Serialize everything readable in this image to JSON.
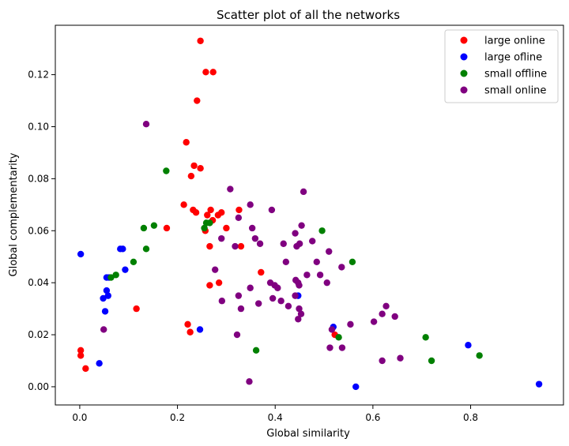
{
  "chart_data": {
    "type": "scatter",
    "title": "Scatter plot of all the networks",
    "xlabel": "Global similarity",
    "ylabel": "Global complementarity",
    "xlim": [
      -0.05,
      0.99
    ],
    "ylim": [
      -0.007,
      0.139
    ],
    "xticks": [
      0.0,
      0.2,
      0.4,
      0.6,
      0.8
    ],
    "xtick_labels": [
      "0.0",
      "0.2",
      "0.4",
      "0.6",
      "0.8"
    ],
    "yticks": [
      0.0,
      0.02,
      0.04,
      0.06,
      0.08,
      0.1,
      0.12
    ],
    "ytick_labels": [
      "0.00",
      "0.02",
      "0.04",
      "0.06",
      "0.08",
      "0.10",
      "0.12"
    ],
    "grid": false,
    "legend_position": "top-right",
    "series": [
      {
        "name": "large online",
        "color": "#ff0000",
        "points": [
          [
            0.247,
            0.133
          ],
          [
            0.258,
            0.121
          ],
          [
            0.273,
            0.121
          ],
          [
            0.24,
            0.11
          ],
          [
            0.218,
            0.094
          ],
          [
            0.234,
            0.085
          ],
          [
            0.247,
            0.084
          ],
          [
            0.228,
            0.081
          ],
          [
            0.213,
            0.07
          ],
          [
            0.232,
            0.068
          ],
          [
            0.238,
            0.067
          ],
          [
            0.261,
            0.066
          ],
          [
            0.268,
            0.068
          ],
          [
            0.283,
            0.066
          ],
          [
            0.29,
            0.067
          ],
          [
            0.272,
            0.064
          ],
          [
            0.326,
            0.068
          ],
          [
            0.178,
            0.061
          ],
          [
            0.257,
            0.06
          ],
          [
            0.3,
            0.061
          ],
          [
            0.266,
            0.054
          ],
          [
            0.33,
            0.054
          ],
          [
            0.371,
            0.044
          ],
          [
            0.285,
            0.04
          ],
          [
            0.266,
            0.039
          ],
          [
            0.116,
            0.03
          ],
          [
            0.221,
            0.024
          ],
          [
            0.226,
            0.021
          ],
          [
            0.522,
            0.02
          ],
          [
            0.002,
            0.014
          ],
          [
            0.002,
            0.012
          ],
          [
            0.012,
            0.007
          ]
        ]
      },
      {
        "name": "large ofline",
        "color": "#0000ff",
        "points": [
          [
            0.002,
            0.051
          ],
          [
            0.083,
            0.053
          ],
          [
            0.088,
            0.053
          ],
          [
            0.093,
            0.045
          ],
          [
            0.055,
            0.042
          ],
          [
            0.06,
            0.042
          ],
          [
            0.055,
            0.037
          ],
          [
            0.058,
            0.035
          ],
          [
            0.048,
            0.034
          ],
          [
            0.052,
            0.029
          ],
          [
            0.04,
            0.009
          ],
          [
            0.246,
            0.022
          ],
          [
            0.447,
            0.035
          ],
          [
            0.519,
            0.023
          ],
          [
            0.565,
            0.0
          ],
          [
            0.795,
            0.016
          ],
          [
            0.94,
            0.001
          ]
        ]
      },
      {
        "name": "small offline",
        "color": "#008000",
        "points": [
          [
            0.177,
            0.083
          ],
          [
            0.152,
            0.062
          ],
          [
            0.131,
            0.061
          ],
          [
            0.136,
            0.053
          ],
          [
            0.11,
            0.048
          ],
          [
            0.074,
            0.043
          ],
          [
            0.064,
            0.042
          ],
          [
            0.255,
            0.061
          ],
          [
            0.259,
            0.063
          ],
          [
            0.266,
            0.063
          ],
          [
            0.496,
            0.06
          ],
          [
            0.558,
            0.048
          ],
          [
            0.53,
            0.019
          ],
          [
            0.361,
            0.014
          ],
          [
            0.708,
            0.019
          ],
          [
            0.72,
            0.01
          ],
          [
            0.818,
            0.012
          ]
        ]
      },
      {
        "name": "small online",
        "color": "#800080",
        "points": [
          [
            0.136,
            0.101
          ],
          [
            0.308,
            0.076
          ],
          [
            0.458,
            0.075
          ],
          [
            0.349,
            0.07
          ],
          [
            0.393,
            0.068
          ],
          [
            0.325,
            0.065
          ],
          [
            0.353,
            0.061
          ],
          [
            0.454,
            0.062
          ],
          [
            0.29,
            0.057
          ],
          [
            0.359,
            0.057
          ],
          [
            0.441,
            0.059
          ],
          [
            0.318,
            0.054
          ],
          [
            0.369,
            0.055
          ],
          [
            0.417,
            0.055
          ],
          [
            0.444,
            0.054
          ],
          [
            0.45,
            0.055
          ],
          [
            0.476,
            0.056
          ],
          [
            0.51,
            0.052
          ],
          [
            0.422,
            0.048
          ],
          [
            0.485,
            0.048
          ],
          [
            0.536,
            0.046
          ],
          [
            0.277,
            0.045
          ],
          [
            0.465,
            0.043
          ],
          [
            0.492,
            0.043
          ],
          [
            0.442,
            0.041
          ],
          [
            0.447,
            0.04
          ],
          [
            0.39,
            0.04
          ],
          [
            0.399,
            0.039
          ],
          [
            0.449,
            0.039
          ],
          [
            0.506,
            0.04
          ],
          [
            0.349,
            0.038
          ],
          [
            0.405,
            0.038
          ],
          [
            0.325,
            0.035
          ],
          [
            0.441,
            0.035
          ],
          [
            0.366,
            0.032
          ],
          [
            0.291,
            0.033
          ],
          [
            0.395,
            0.034
          ],
          [
            0.412,
            0.033
          ],
          [
            0.427,
            0.031
          ],
          [
            0.33,
            0.03
          ],
          [
            0.449,
            0.03
          ],
          [
            0.453,
            0.028
          ],
          [
            0.447,
            0.026
          ],
          [
            0.554,
            0.024
          ],
          [
            0.602,
            0.025
          ],
          [
            0.645,
            0.027
          ],
          [
            0.619,
            0.028
          ],
          [
            0.627,
            0.031
          ],
          [
            0.049,
            0.022
          ],
          [
            0.516,
            0.022
          ],
          [
            0.322,
            0.02
          ],
          [
            0.512,
            0.015
          ],
          [
            0.537,
            0.015
          ],
          [
            0.619,
            0.01
          ],
          [
            0.656,
            0.011
          ],
          [
            0.347,
            0.002
          ]
        ]
      }
    ]
  }
}
